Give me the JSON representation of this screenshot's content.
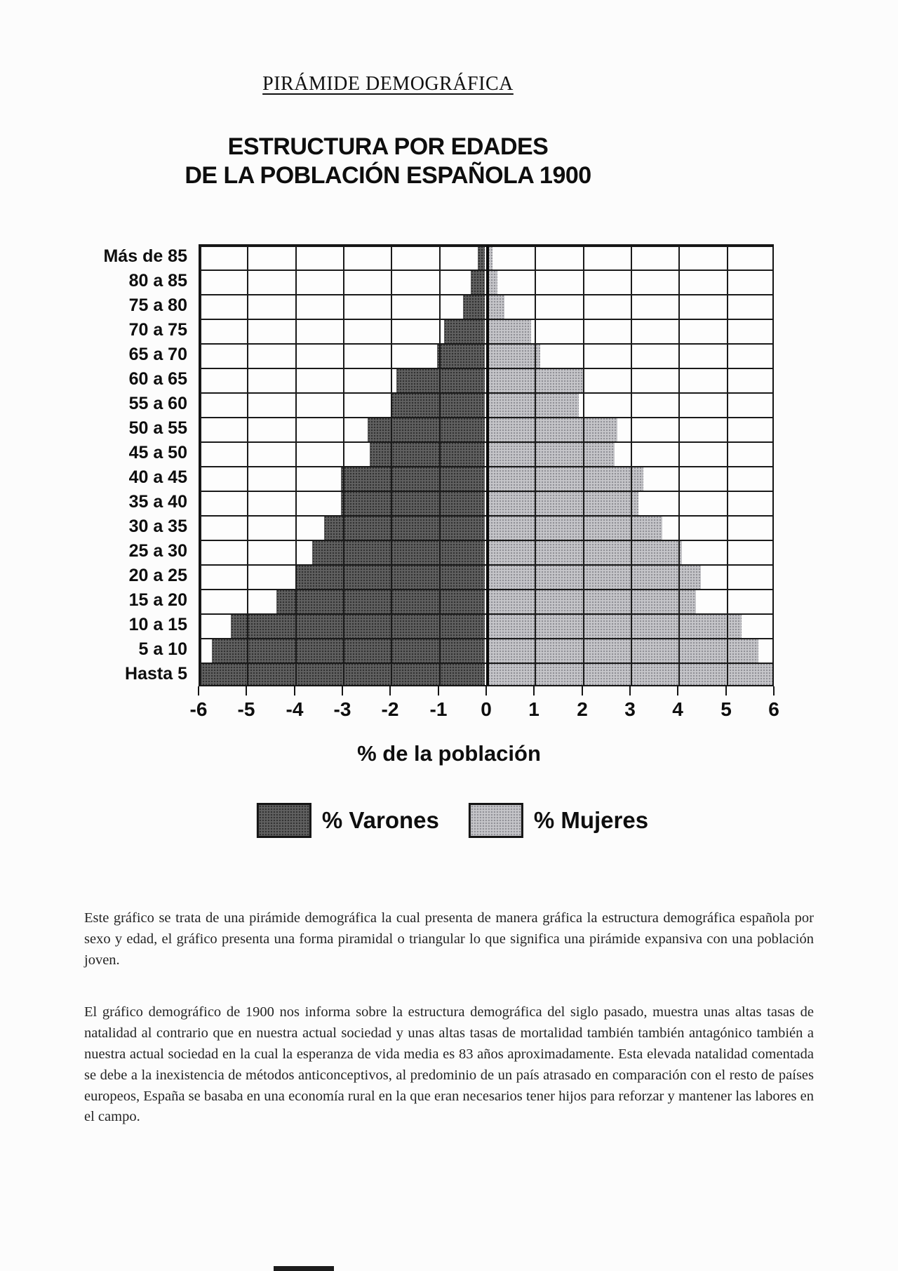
{
  "page": {
    "title": "PIRÁMIDE DEMOGRÁFICA",
    "paragraphs": [
      "Este gráfico se trata de una pirámide demográfica la cual presenta de manera gráfica la estructura demográfica española por sexo y edad, el gráfico presenta una forma piramidal o triangular lo que significa una pirámide expansiva con una población joven.",
      "El gráfico demográfico de 1900 nos informa sobre la estructura demográfica del siglo pasado, muestra unas altas tasas de natalidad al contrario que en nuestra actual sociedad y unas altas tasas de mortalidad también también antagónico también a nuestra actual sociedad en la cual la esperanza de vida media es 83 años aproximadamente. Esta elevada natalidad comentada se debe a la inexistencia de métodos anticonceptivos, al predominio de un país atrasado en comparación con el resto de países europeos, España se basaba en una economía rural en la que eran necesarios tener hijos para reforzar y mantener las labores en el campo."
    ]
  },
  "chart_data": {
    "type": "bar",
    "subtype": "population-pyramid",
    "title_line1": "ESTRUCTURA POR EDADES",
    "title_line2": "DE LA POBLACIÓN ESPAÑOLA 1900",
    "xlabel": "% de la población",
    "xlim": [
      -6,
      6
    ],
    "x_ticks": [
      "-6",
      "-5",
      "-4",
      "-3",
      "-2",
      "-1",
      "0",
      "1",
      "2",
      "3",
      "4",
      "5",
      "6"
    ],
    "grid": true,
    "legend_position": "bottom",
    "categories": [
      "Más de 85",
      "80 a 85",
      "75 a 80",
      "70 a 75",
      "65 a 70",
      "60 a 65",
      "55 a 60",
      "50 a 55",
      "45 a 50",
      "40 a 45",
      "35 a 40",
      "30 a 35",
      "25 a 30",
      "20 a 25",
      "15 a 20",
      "10 a 15",
      "5 a 10",
      "Hasta 5"
    ],
    "series": [
      {
        "name": "% Varones",
        "side": "left",
        "color": "#616161",
        "values": [
          0.15,
          0.3,
          0.45,
          0.85,
          1.0,
          1.85,
          1.95,
          2.45,
          2.4,
          3.0,
          3.0,
          3.35,
          3.6,
          3.95,
          4.35,
          5.3,
          5.7,
          5.95
        ]
      },
      {
        "name": "% Mujeres",
        "side": "right",
        "color": "#c6c6ca",
        "values": [
          0.1,
          0.2,
          0.35,
          0.9,
          1.1,
          2.0,
          1.9,
          2.7,
          2.65,
          3.25,
          3.15,
          3.65,
          4.05,
          4.45,
          4.35,
          5.3,
          5.65,
          5.95
        ]
      }
    ]
  }
}
